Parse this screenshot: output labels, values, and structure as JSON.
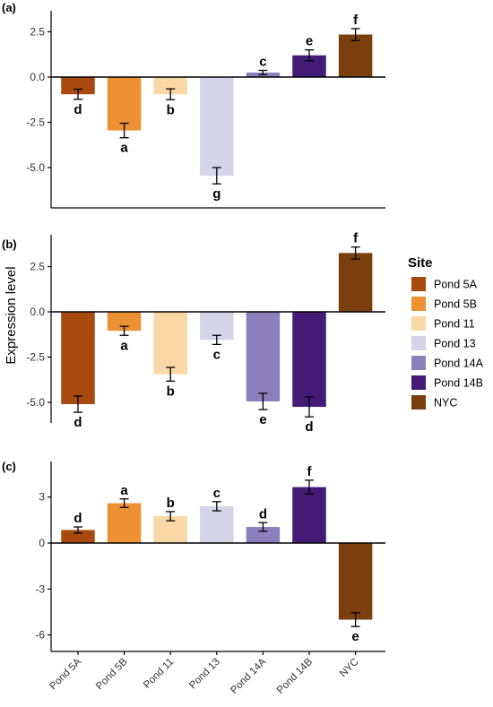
{
  "chart_data": [
    {
      "type": "bar",
      "panel_label": "(a)",
      "categories": [
        "Pond 5A",
        "Pond 5B",
        "Pond 11",
        "Pond 13",
        "Pond 14A",
        "Pond 14B",
        "NYC"
      ],
      "values": [
        -0.95,
        -2.95,
        -0.95,
        -5.45,
        0.25,
        1.2,
        2.35
      ],
      "errors": [
        0.28,
        0.4,
        0.3,
        0.45,
        0.12,
        0.3,
        0.33
      ],
      "letters": [
        "d",
        "a",
        "b",
        "g",
        "c",
        "e",
        "f"
      ],
      "yticks": [
        "2.5",
        "0.0",
        "-2.5",
        "-5.0"
      ],
      "ytick_values": [
        2.5,
        0,
        -2.5,
        -5.0
      ],
      "ylim": [
        -6.8,
        3.6
      ]
    },
    {
      "type": "bar",
      "panel_label": "(b)",
      "categories": [
        "Pond 5A",
        "Pond 5B",
        "Pond 11",
        "Pond 13",
        "Pond 14A",
        "Pond 14B",
        "NYC"
      ],
      "values": [
        -5.1,
        -1.05,
        -3.45,
        -1.55,
        -4.95,
        -5.25,
        3.25
      ],
      "errors": [
        0.45,
        0.25,
        0.38,
        0.25,
        0.45,
        0.55,
        0.33
      ],
      "letters": [
        "d",
        "a",
        "b",
        "c",
        "e",
        "d",
        "f"
      ],
      "yticks": [
        "2.5",
        "0.0",
        "-2.5",
        "-5.0"
      ],
      "ytick_values": [
        2.5,
        0,
        -2.5,
        -5.0
      ],
      "ylim": [
        -7.1,
        4.3
      ]
    },
    {
      "type": "bar",
      "panel_label": "(c)",
      "categories": [
        "Pond 5A",
        "Pond 5B",
        "Pond 11",
        "Pond 13",
        "Pond 14A",
        "Pond 14B",
        "NYC"
      ],
      "values": [
        0.85,
        2.6,
        1.75,
        2.4,
        1.05,
        3.65,
        -5.0
      ],
      "errors": [
        0.2,
        0.28,
        0.3,
        0.3,
        0.28,
        0.45,
        0.45
      ],
      "letters": [
        "d",
        "a",
        "b",
        "c",
        "d",
        "f",
        "e"
      ],
      "yticks": [
        "3",
        "0",
        "-3",
        "-6"
      ],
      "ytick_values": [
        3,
        0,
        -3,
        -6
      ],
      "ylim": [
        -6.5,
        4.6
      ]
    }
  ],
  "shared": {
    "ylabel": "Expression level",
    "x_tick_labels": [
      "Pond 5A",
      "Pond 5B",
      "Pond 11",
      "Pond 13",
      "Pond 14A",
      "Pond 14B",
      "NYC"
    ]
  },
  "legend": {
    "title": "Site",
    "placement": "right-middle",
    "items": [
      {
        "label": "Pond 5A",
        "color": "#a84910"
      },
      {
        "label": "Pond 5B",
        "color": "#ec9235"
      },
      {
        "label": "Pond 11",
        "color": "#fad8a5"
      },
      {
        "label": "Pond 13",
        "color": "#d4d5e9"
      },
      {
        "label": "Pond 14A",
        "color": "#8c80bc"
      },
      {
        "label": "Pond 14B",
        "color": "#431b76"
      },
      {
        "label": "NYC",
        "color": "#7b3f0e"
      }
    ]
  },
  "colors": [
    "#a84910",
    "#ec9235",
    "#fad8a5",
    "#d4d5e9",
    "#8c80bc",
    "#431b76",
    "#7b3f0e"
  ]
}
